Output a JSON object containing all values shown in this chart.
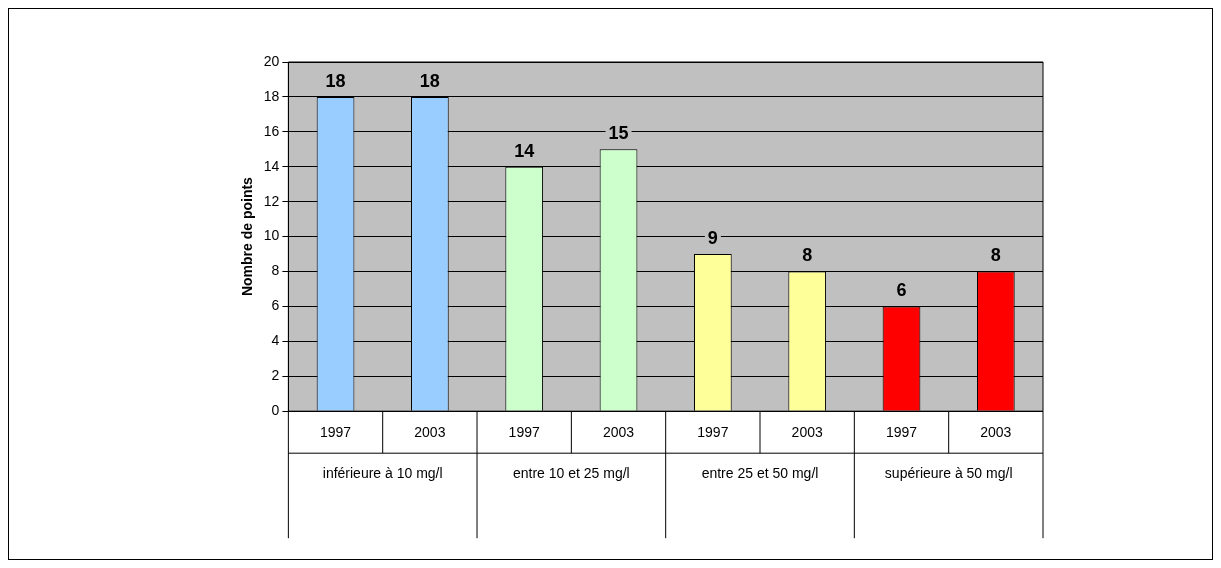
{
  "chart_data": {
    "type": "bar",
    "ylabel": "Nombre de points",
    "categories": [
      "1997",
      "2003",
      "1997",
      "2003",
      "1997",
      "2003",
      "1997",
      "2003"
    ],
    "values": [
      18,
      18,
      14,
      15,
      9,
      8,
      6,
      8
    ],
    "colors": [
      "#99ccff",
      "#99ccff",
      "#ccffcc",
      "#ccffcc",
      "#ffff99",
      "#ffff99",
      "#ff0000",
      "#ff0000"
    ],
    "ylim": [
      0,
      20
    ],
    "yticks": [
      0,
      2,
      4,
      6,
      8,
      10,
      12,
      14,
      16,
      18,
      20
    ],
    "grid": "y",
    "data_labels": true,
    "legend": false,
    "annotations": [
      "inférieure à 10 mg/l",
      "entre 10 et 25 mg/l",
      "entre 25 et 50 mg/l",
      "supérieure à 50 mg/l"
    ]
  }
}
